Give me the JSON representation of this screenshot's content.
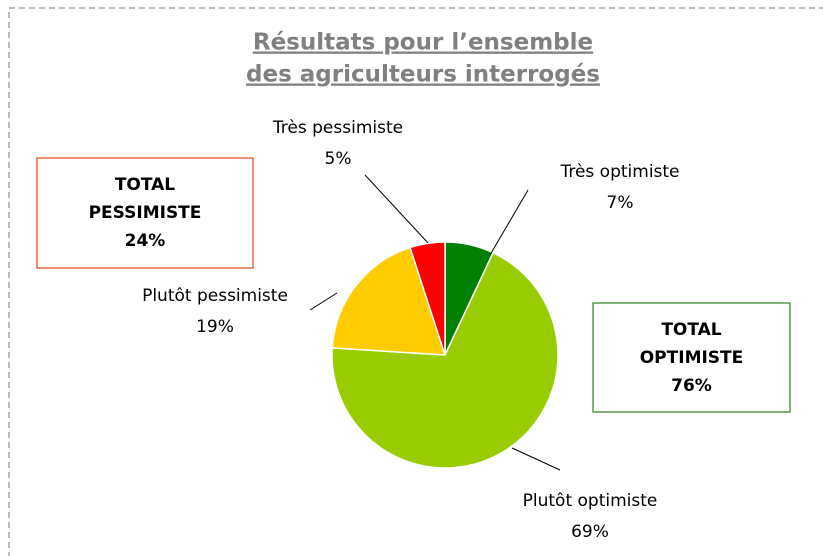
{
  "chart_data": {
    "type": "pie",
    "title": [
      "Résultats pour l’ensemble",
      "des agriculteurs interrogés"
    ],
    "categories": [
      "Très optimiste",
      "Plutôt optimiste",
      "Plutôt pessimiste",
      "Très pessimiste"
    ],
    "values": [
      7,
      69,
      19,
      5
    ],
    "value_labels": [
      "7%",
      "69%",
      "19%",
      "5%"
    ],
    "colors": [
      "#008000",
      "#99cc00",
      "#ffcc00",
      "#ff0000"
    ],
    "annotations": [
      {
        "lines": [
          "TOTAL",
          "PESSIMISTE",
          "24%"
        ],
        "color": "#e8502a"
      },
      {
        "lines": [
          "TOTAL",
          "OPTIMISTE",
          "76%"
        ],
        "color": "#3c8c2c"
      }
    ]
  }
}
